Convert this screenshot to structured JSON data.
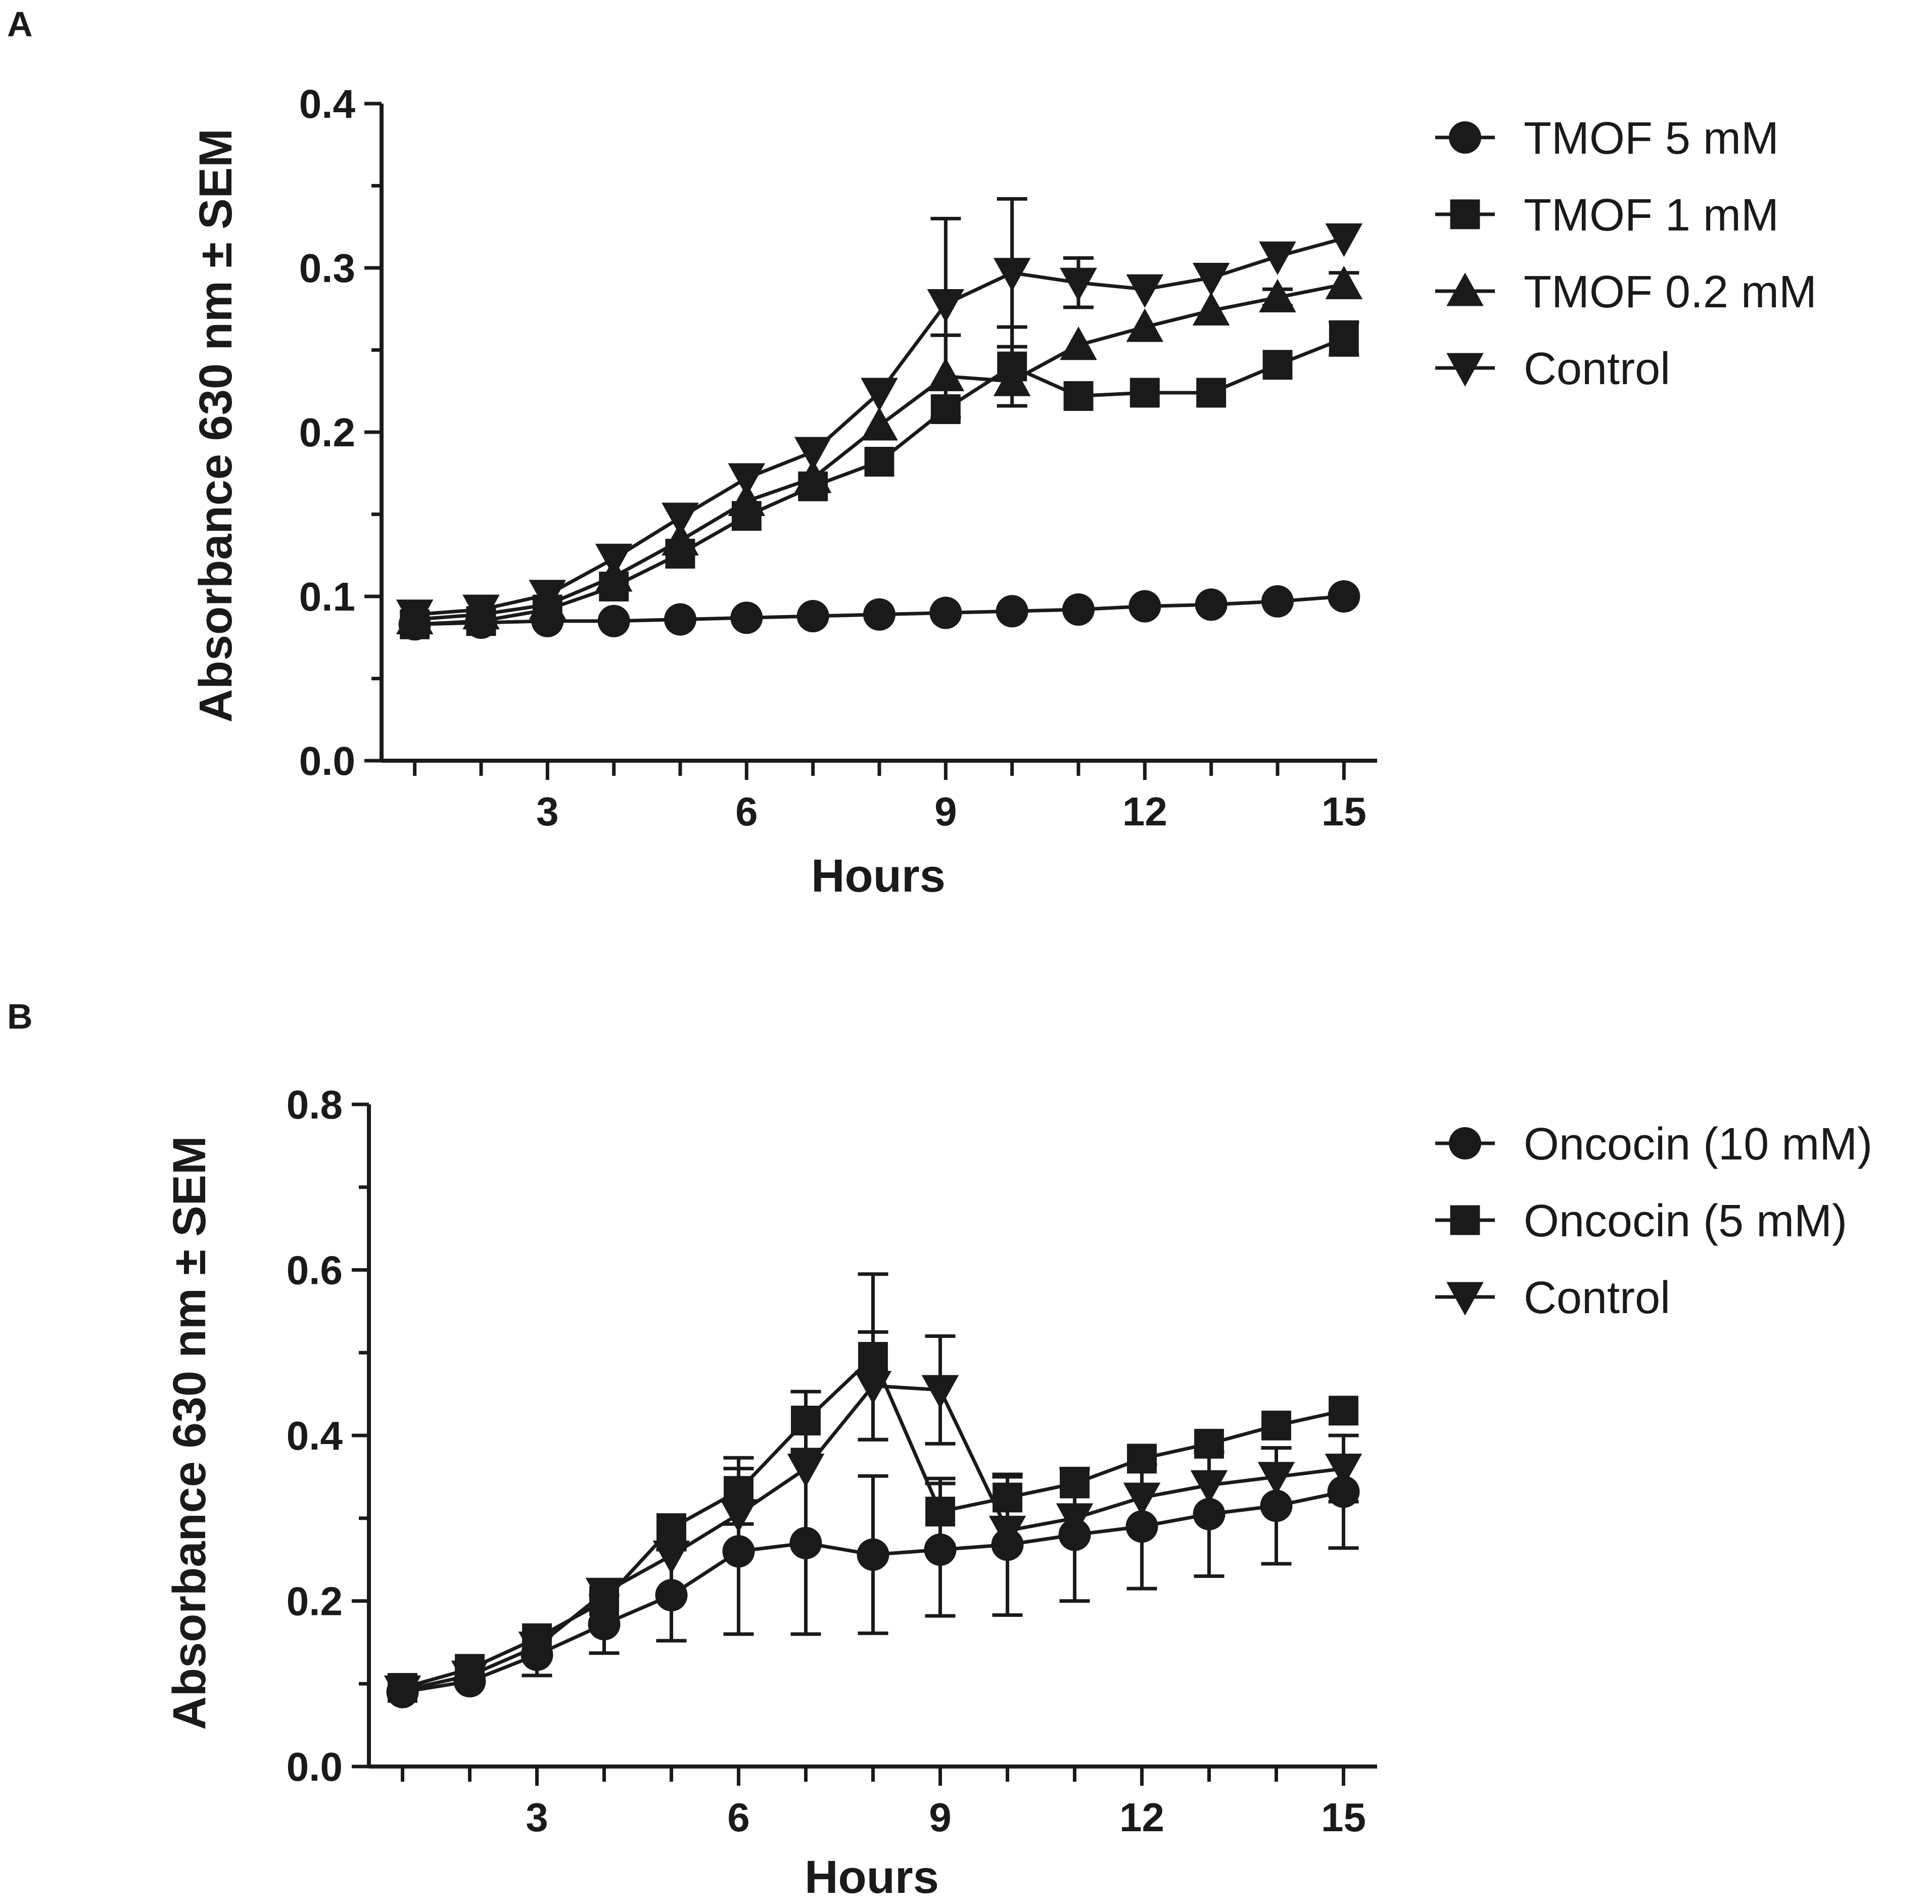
{
  "chart_data": [
    {
      "type": "line",
      "panel": "A",
      "title": "",
      "xlabel": "Hours",
      "ylabel": "Absorbance 630 nm  ± SEM",
      "xlim": [
        0.5,
        15.5
      ],
      "ylim": [
        0.0,
        0.4
      ],
      "xticks": [
        3,
        6,
        9,
        12,
        15
      ],
      "yticks": [
        0.0,
        0.1,
        0.2,
        0.3,
        0.4
      ],
      "ytick_labels": [
        "0.0",
        "0.1",
        "0.2",
        "0.3",
        "0.4"
      ],
      "x": [
        1,
        2,
        3,
        4,
        5,
        6,
        7,
        8,
        9,
        10,
        11,
        12,
        13,
        14,
        15
      ],
      "legend_position": "right",
      "series": [
        {
          "name": "TMOF 5 mM",
          "marker": "circle",
          "values": [
            0.083,
            0.084,
            0.085,
            0.085,
            0.086,
            0.087,
            0.088,
            0.089,
            0.09,
            0.091,
            0.092,
            0.094,
            0.095,
            0.097,
            0.1
          ],
          "errors": [
            0,
            0,
            0,
            0,
            0,
            0,
            0,
            0,
            0,
            0,
            0,
            0,
            0,
            0,
            0
          ]
        },
        {
          "name": "TMOF 1 mM",
          "marker": "square",
          "values": [
            0.083,
            0.085,
            0.092,
            0.106,
            0.126,
            0.149,
            0.167,
            0.182,
            0.214,
            0.24,
            0.222,
            0.224,
            0.224,
            0.241,
            0.257
          ],
          "errors": [
            0,
            0,
            0,
            0,
            0,
            0,
            0,
            0,
            0,
            0.024,
            0,
            0,
            0,
            0,
            0.01
          ]
        },
        {
          "name": "TMOF 0.2 mM",
          "marker": "triangle-up",
          "values": [
            0.086,
            0.089,
            0.095,
            0.112,
            0.134,
            0.158,
            0.172,
            0.204,
            0.234,
            0.231,
            0.253,
            0.264,
            0.274,
            0.282,
            0.29
          ],
          "errors": [
            0,
            0,
            0,
            0,
            0,
            0,
            0,
            0,
            0.025,
            0,
            0,
            0,
            0,
            0.005,
            0.007
          ]
        },
        {
          "name": "Control",
          "marker": "triangle-down",
          "values": [
            0.089,
            0.092,
            0.101,
            0.123,
            0.148,
            0.172,
            0.188,
            0.224,
            0.278,
            0.297,
            0.291,
            0.287,
            0.294,
            0.307,
            0.318
          ],
          "errors": [
            0,
            0,
            0,
            0,
            0,
            0,
            0,
            0,
            0.052,
            0.045,
            0.015,
            0,
            0,
            0,
            0
          ]
        }
      ]
    },
    {
      "type": "line",
      "panel": "B",
      "title": "",
      "xlabel": "Hours",
      "ylabel": "Absorbance 630 nm  ± SEM",
      "xlim": [
        0.5,
        15.5
      ],
      "ylim": [
        0.0,
        0.8
      ],
      "xticks": [
        3,
        6,
        9,
        12,
        15
      ],
      "yticks": [
        0.0,
        0.2,
        0.4,
        0.6,
        0.8
      ],
      "ytick_labels": [
        "0.0",
        "0.2",
        "0.4",
        "0.6",
        "0.8"
      ],
      "x": [
        1,
        2,
        3,
        4,
        5,
        6,
        7,
        8,
        9,
        10,
        11,
        12,
        13,
        14,
        15
      ],
      "legend_position": "right",
      "series": [
        {
          "name": "Oncocin (10 mM)",
          "marker": "circle",
          "values": [
            0.09,
            0.103,
            0.135,
            0.172,
            0.207,
            0.26,
            0.27,
            0.256,
            0.262,
            0.268,
            0.28,
            0.29,
            0.305,
            0.315,
            0.332
          ],
          "errors": [
            0,
            0,
            0.025,
            0.035,
            0.055,
            0.1,
            0.11,
            0.095,
            0.08,
            0.085,
            0.08,
            0.075,
            0.075,
            0.07,
            0.068
          ]
        },
        {
          "name": "Oncocin (5 mM)",
          "marker": "square",
          "values": [
            0.095,
            0.118,
            0.155,
            0.2,
            0.288,
            0.333,
            0.418,
            0.495,
            0.308,
            0.325,
            0.342,
            0.372,
            0.39,
            0.412,
            0.43
          ],
          "errors": [
            0,
            0,
            0,
            0,
            0,
            0.04,
            0.035,
            0.1,
            0.04,
            0.025,
            0,
            0,
            0,
            0,
            0
          ]
        },
        {
          "name": "Control",
          "marker": "triangle-down",
          "values": [
            0.092,
            0.11,
            0.145,
            0.21,
            0.255,
            0.305,
            0.36,
            0.46,
            0.455,
            0.285,
            0.3,
            0.325,
            0.34,
            0.35,
            0.36
          ],
          "errors": [
            0,
            0,
            0,
            0,
            0,
            0,
            0,
            0.065,
            0.065,
            0,
            0,
            0,
            0,
            0.035,
            0.04
          ]
        }
      ]
    }
  ]
}
